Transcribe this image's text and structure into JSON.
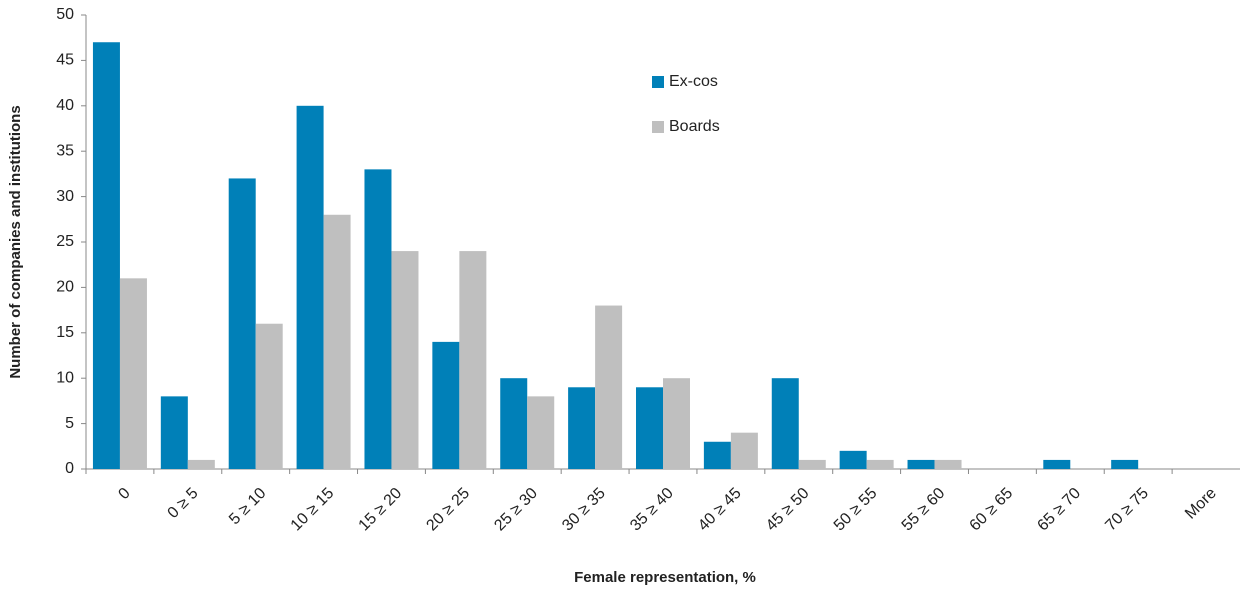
{
  "chart_data": {
    "type": "bar",
    "x_label": "Female representation, %",
    "y_label": "Number of companies and institutions",
    "categories": [
      "0",
      "0 ≥ 5",
      "5 ≥ 10",
      "10 ≥ 15",
      "15 ≥ 20",
      "20 ≥ 25",
      "25 ≥ 30",
      "30 ≥ 35",
      "35 ≥ 40",
      "40 ≥ 45",
      "45 ≥ 50",
      "50 ≥ 55",
      "55 ≥ 60",
      "60 ≥ 65",
      "65 ≥ 70",
      "70 ≥ 75",
      "More"
    ],
    "series": [
      {
        "name": "Ex-cos",
        "color": "#0080b8",
        "values": [
          47,
          8,
          32,
          40,
          33,
          14,
          10,
          9,
          9,
          3,
          10,
          2,
          1,
          0,
          1,
          1,
          0
        ]
      },
      {
        "name": "Boards",
        "color": "#bfbfbf",
        "values": [
          21,
          1,
          16,
          28,
          24,
          24,
          8,
          18,
          10,
          4,
          1,
          1,
          1,
          0,
          0,
          0,
          0
        ]
      }
    ],
    "ylim": [
      0,
      50
    ],
    "yticks": [
      0,
      5,
      10,
      15,
      20,
      25,
      30,
      35,
      40,
      45,
      50
    ],
    "grid": false,
    "legend": "top"
  }
}
